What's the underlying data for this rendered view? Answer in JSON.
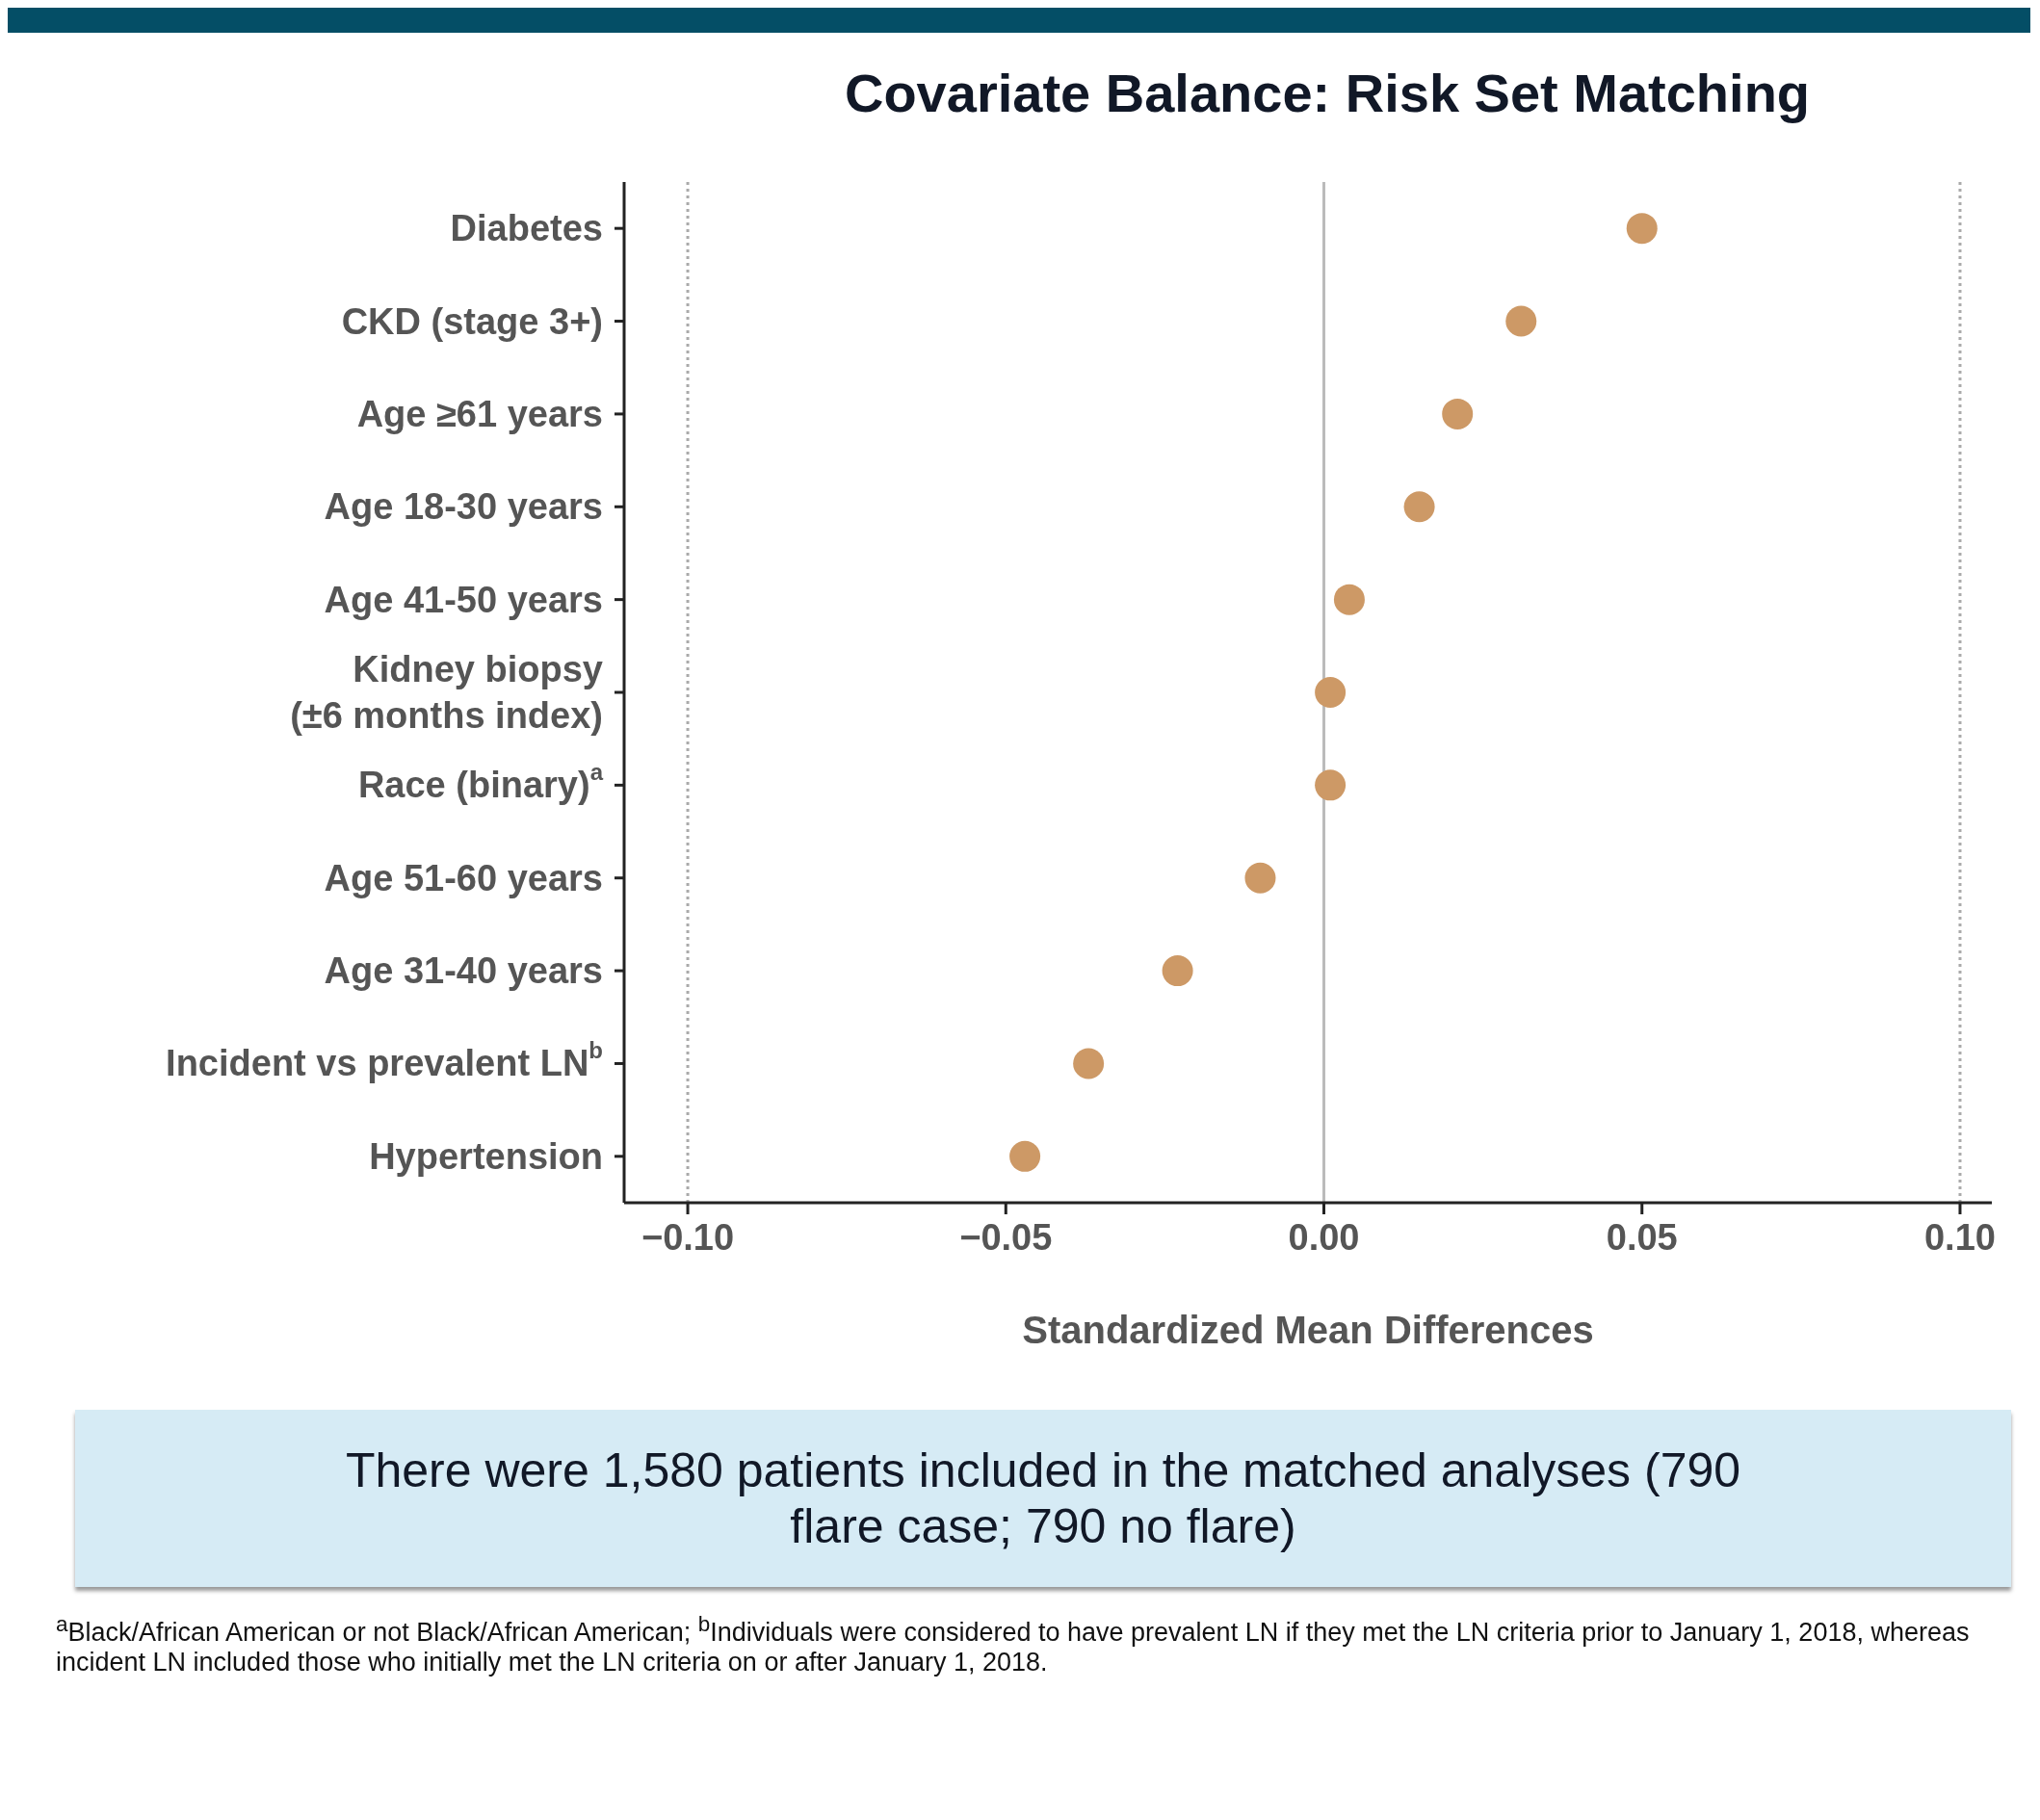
{
  "chart_data": {
    "type": "scatter",
    "title": "Covariate Balance: Risk Set Matching",
    "xlabel": "Standardized Mean Differences",
    "orientation": "horizontal",
    "categories": [
      "Diabetes",
      "CKD (stage 3+)",
      "Age ≥61 years",
      "Age 18-30 years",
      "Age 41-50 years",
      "Kidney biopsy (±6 months index)",
      "Race (binary)$^{a}$",
      "Age 51-60 years",
      "Age 31-40 years",
      "Incident vs prevalent LN$^{b}$",
      "Hypertension"
    ],
    "values": [
      0.05,
      0.031,
      0.021,
      0.015,
      0.004,
      0.001,
      0.001,
      -0.01,
      -0.023,
      -0.037,
      -0.047
    ],
    "color": "#cd9966",
    "marker": "circle",
    "xlim": [
      -0.11,
      0.105
    ],
    "xticks": [
      {
        "value": -0.1,
        "label": "−0.10"
      },
      {
        "value": -0.05,
        "label": "−0.05"
      },
      {
        "value": 0,
        "label": "0.00"
      },
      {
        "value": 0.05,
        "label": "0.05"
      },
      {
        "value": 0.1,
        "label": "0.10"
      }
    ],
    "ref_lines": [
      {
        "axis": "x",
        "value": -0.1,
        "color": "#aaaaaa",
        "line_style": "dotted"
      },
      {
        "axis": "x",
        "value": 0,
        "color": "#bbbbbb",
        "line_style": "solid"
      },
      {
        "axis": "x",
        "value": 0.1,
        "color": "#aaaaaa",
        "line_style": "dotted"
      }
    ],
    "annotations": [
      "There were 1,580 patients included in the matched analyses (790 flare case; 790 no flare)",
      "$^{a}$Black/African American or not Black/African American; $^{b}$Individuals were considered to have prevalent LN if they met the LN criteria prior to January 1, 2018, whereas incident LN included those who initially met the LN criteria on or after January 1, 2018."
    ]
  }
}
